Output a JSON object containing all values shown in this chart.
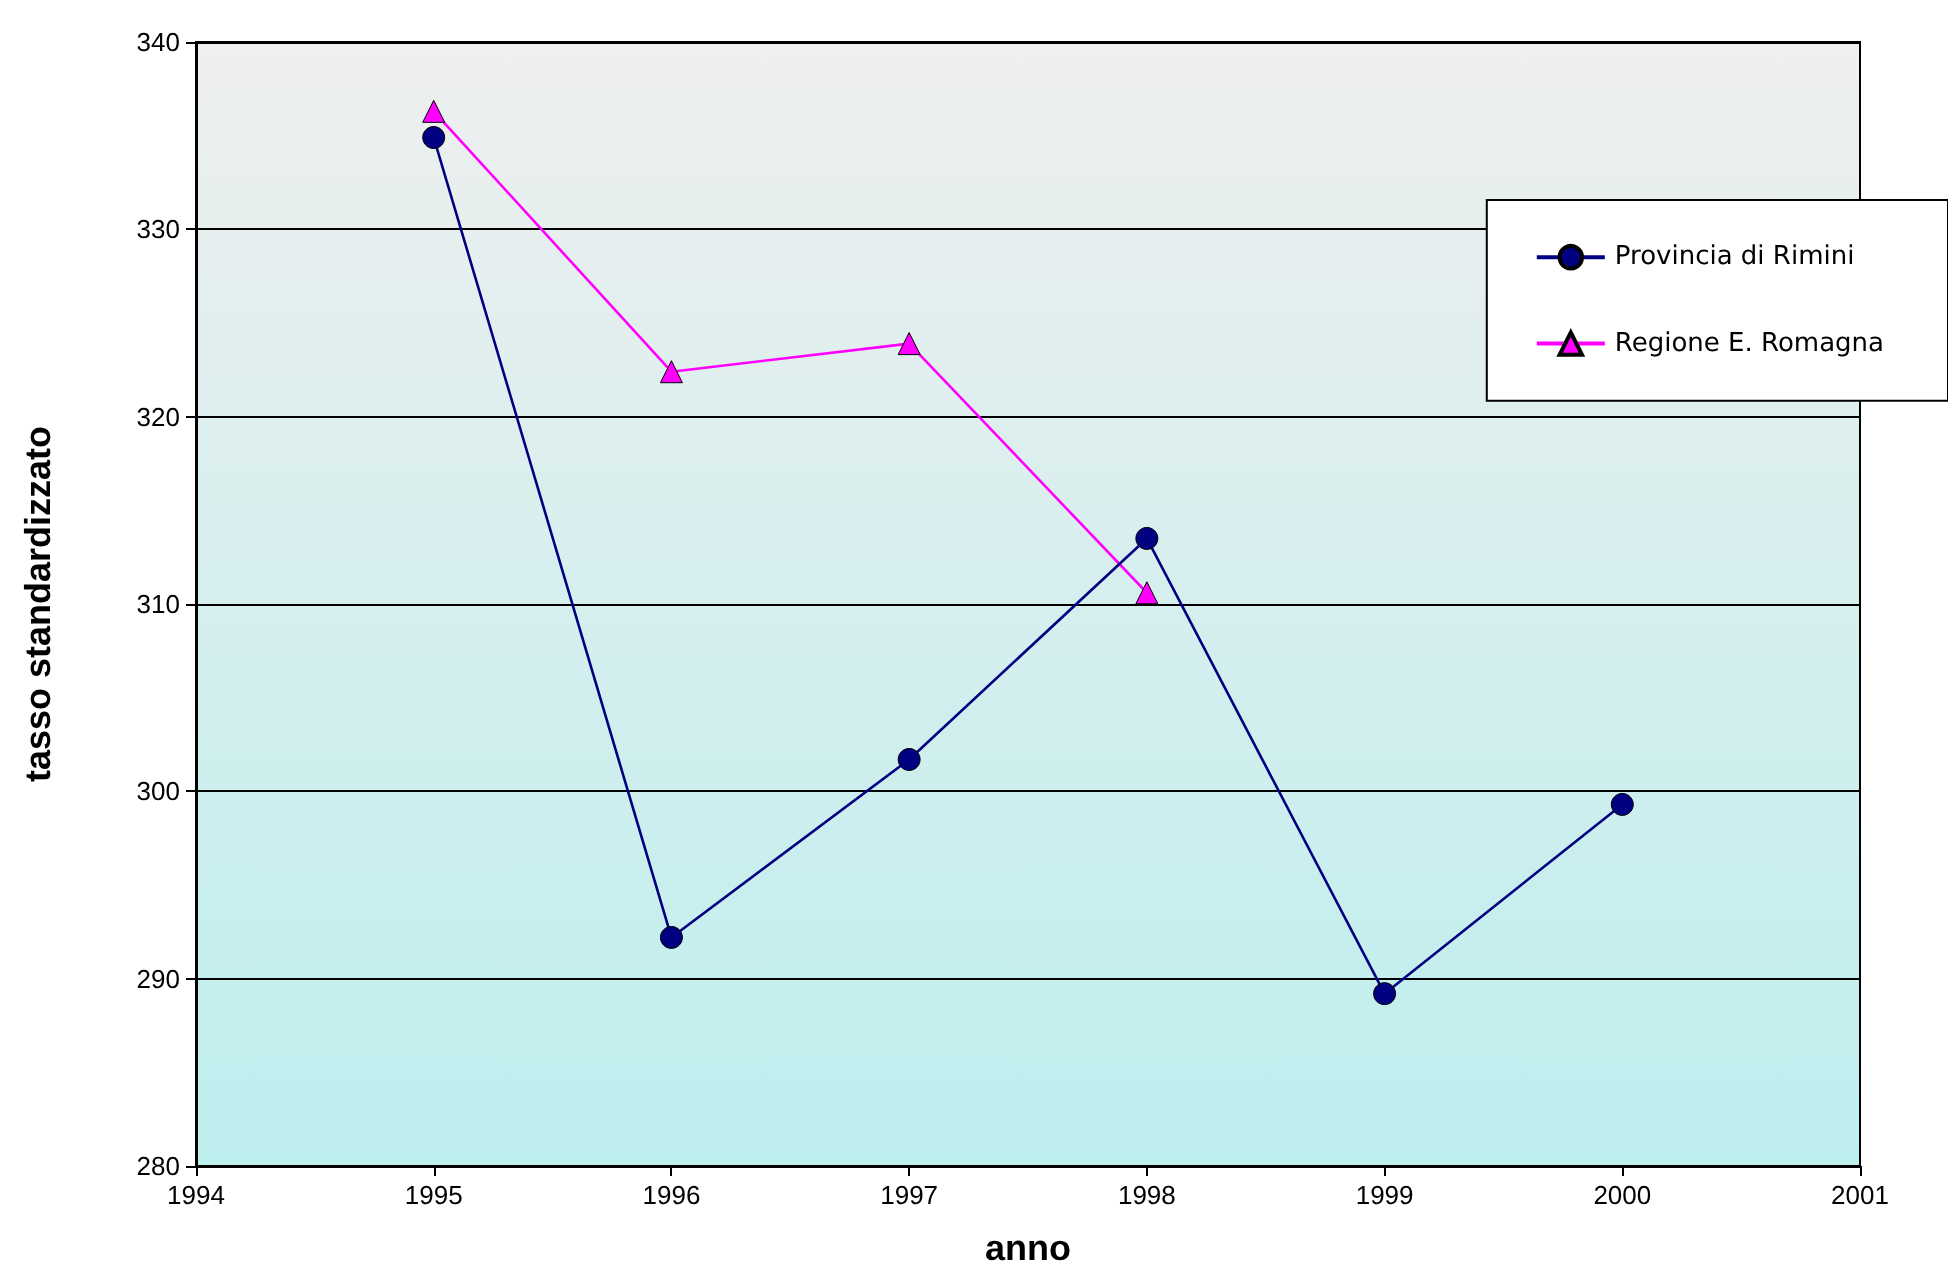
{
  "chart_data": {
    "type": "line",
    "xlabel": "anno",
    "ylabel": "tasso standardizzato",
    "x": [
      1995,
      1996,
      1997,
      1998,
      1999,
      2000
    ],
    "series": [
      {
        "name": "Provincia di Rimini",
        "color": "#000080",
        "marker": "circle",
        "values": [
          334.9,
          292.2,
          301.7,
          313.5,
          289.2,
          299.3
        ]
      },
      {
        "name": "Regione E. Romagna",
        "color": "#ff00ff",
        "marker": "triangle",
        "values": [
          336.3,
          322.4,
          323.9,
          310.6,
          null,
          null
        ]
      }
    ],
    "xlim": [
      1994,
      2001
    ],
    "xticks": [
      1994,
      1995,
      1996,
      1997,
      1998,
      1999,
      2000,
      2001
    ],
    "ylim": [
      280,
      340
    ],
    "yticks": [
      280,
      290,
      300,
      310,
      320,
      330,
      340
    ],
    "grid": "y",
    "legend": "top right",
    "line_style": "solid"
  }
}
